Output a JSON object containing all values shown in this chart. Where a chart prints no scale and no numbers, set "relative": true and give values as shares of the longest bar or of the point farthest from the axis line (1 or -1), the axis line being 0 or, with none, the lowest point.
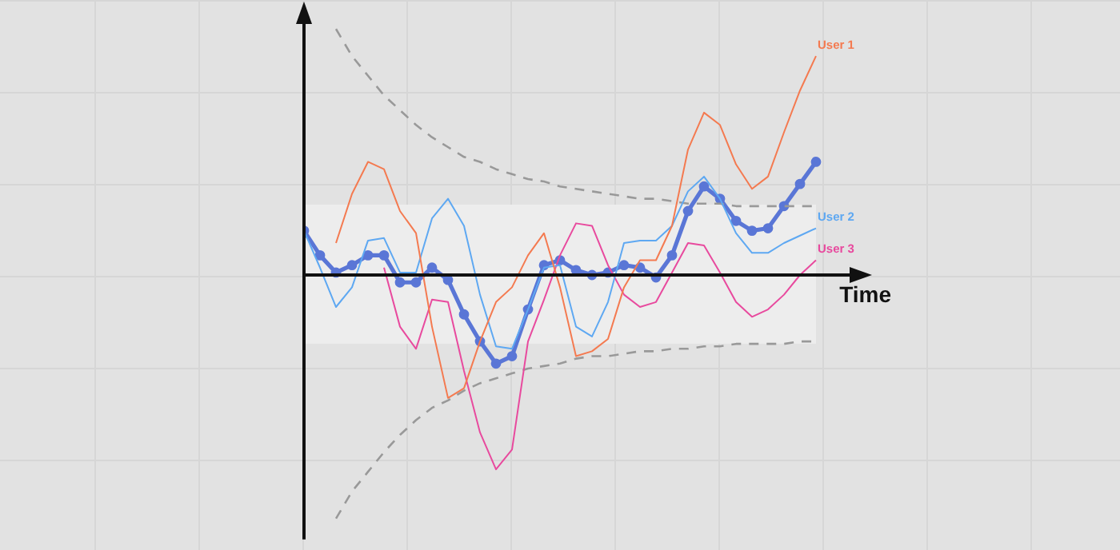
{
  "chart_data": {
    "type": "line",
    "relative": true,
    "xlabel": "Time",
    "legend": false,
    "categories": [
      null,
      null,
      null,
      null,
      null,
      null,
      null,
      null,
      null,
      null,
      null,
      null,
      null,
      null,
      null,
      null,
      null,
      null,
      null,
      null,
      null,
      null,
      null,
      null,
      null,
      null,
      null,
      null,
      null,
      null,
      null,
      null,
      null
    ],
    "series": [
      {
        "name": "User 1",
        "color": "#f47a50",
        "values": [
          null,
          null,
          0.13,
          0.33,
          0.46,
          0.43,
          0.26,
          0.17,
          -0.21,
          -0.5,
          -0.46,
          -0.27,
          -0.11,
          -0.05,
          0.08,
          0.17,
          -0.05,
          -0.33,
          -0.31,
          -0.26,
          -0.05,
          0.06,
          0.06,
          0.2,
          0.51,
          0.66,
          0.61,
          0.45,
          0.35,
          0.4,
          0.58,
          0.75,
          0.89
        ]
      },
      {
        "name": "User 2",
        "color": "#5ea8f2",
        "values": [
          0.18,
          0.03,
          -0.13,
          -0.05,
          0.14,
          0.15,
          0.01,
          0.01,
          0.23,
          0.31,
          0.2,
          -0.08,
          -0.29,
          -0.3,
          -0.14,
          0.03,
          0.04,
          -0.21,
          -0.25,
          -0.11,
          0.13,
          0.14,
          0.14,
          0.2,
          0.34,
          0.4,
          0.31,
          0.17,
          0.09,
          0.09,
          0.13,
          0.16,
          0.19
        ]
      },
      {
        "name": "User 3",
        "color": "#e84a9e",
        "values": [
          null,
          null,
          null,
          null,
          null,
          0.03,
          -0.21,
          -0.3,
          -0.1,
          -0.11,
          -0.39,
          -0.64,
          -0.79,
          -0.71,
          -0.27,
          -0.1,
          0.08,
          0.21,
          0.2,
          0.04,
          -0.08,
          -0.13,
          -0.11,
          0.01,
          0.13,
          0.12,
          0.01,
          -0.11,
          -0.17,
          -0.14,
          -0.08,
          0,
          0.06
        ]
      },
      {
        "color": "#999999",
        "line_style": "dashed",
        "values": [
          null,
          null,
          1,
          0.89,
          0.81,
          0.73,
          0.67,
          0.61,
          0.56,
          0.52,
          0.48,
          0.46,
          0.43,
          0.41,
          0.39,
          0.38,
          0.36,
          0.35,
          0.34,
          0.33,
          0.32,
          0.31,
          0.31,
          0.3,
          0.29,
          0.29,
          0.29,
          0.28,
          0.28,
          0.28,
          0.28,
          0.28,
          0.28
        ]
      },
      {
        "color": "#999999",
        "line_style": "dashed",
        "values": [
          null,
          null,
          -0.99,
          -0.88,
          -0.8,
          -0.72,
          -0.65,
          -0.59,
          -0.54,
          -0.51,
          -0.47,
          -0.44,
          -0.42,
          -0.4,
          -0.38,
          -0.37,
          -0.36,
          -0.34,
          -0.33,
          -0.33,
          -0.32,
          -0.31,
          -0.31,
          -0.3,
          -0.3,
          -0.29,
          -0.29,
          -0.28,
          -0.28,
          -0.28,
          -0.28,
          -0.27,
          -0.27
        ]
      },
      {
        "color": "#5a76d6",
        "marker": "circle",
        "values": [
          0.18,
          0.08,
          0.01,
          0.04,
          0.08,
          0.08,
          -0.03,
          -0.03,
          0.03,
          -0.02,
          -0.16,
          -0.27,
          -0.36,
          -0.33,
          -0.14,
          0.04,
          0.06,
          0.02,
          0,
          0.01,
          0.04,
          0.03,
          -0.01,
          0.08,
          0.26,
          0.36,
          0.31,
          0.22,
          0.18,
          0.19,
          0.28,
          0.37,
          0.46
        ]
      }
    ]
  }
}
